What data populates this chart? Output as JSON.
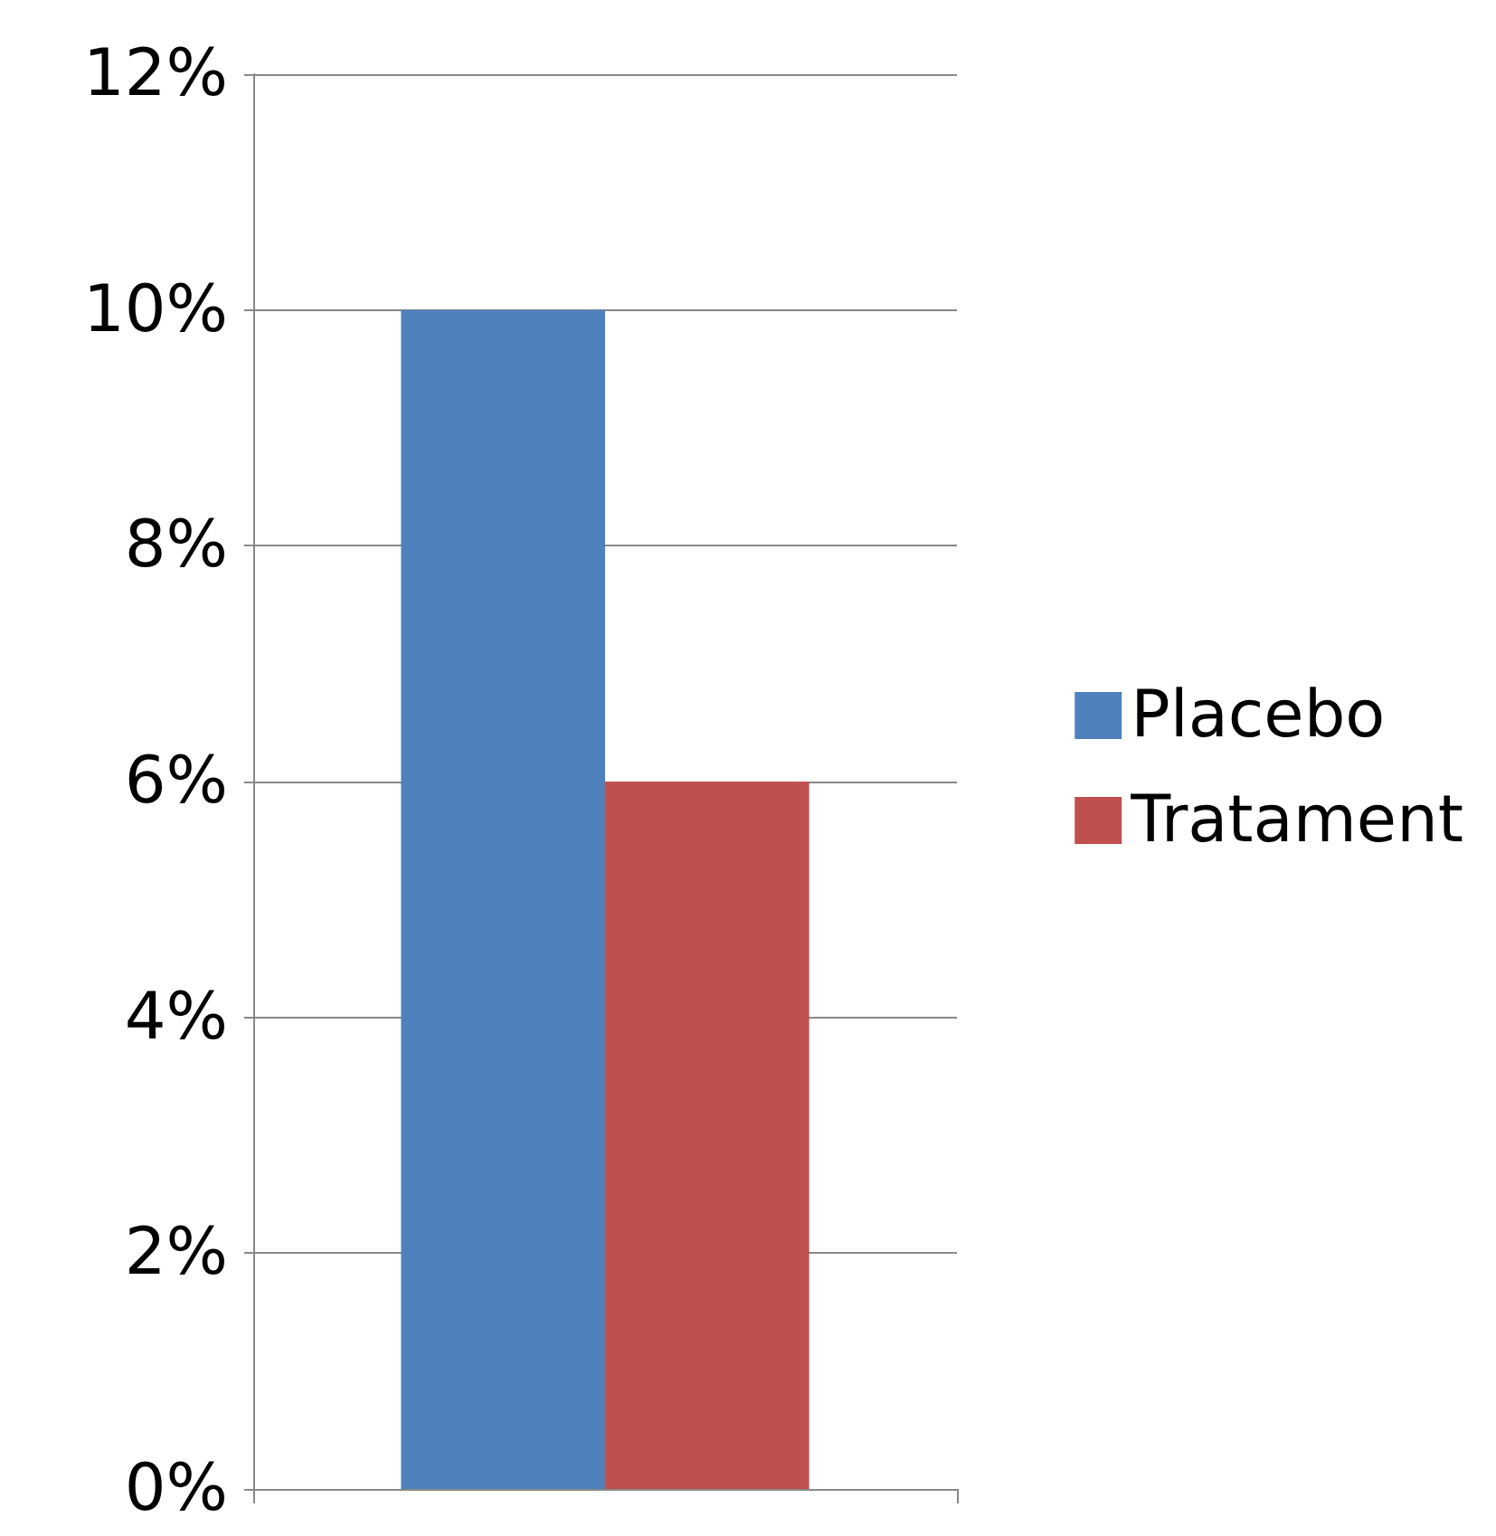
{
  "chart_data": {
    "type": "bar",
    "categories": [
      null
    ],
    "series": [
      {
        "name": "Placebo",
        "color": "#4f81bd",
        "values": [
          10
        ]
      },
      {
        "name": "Tratament",
        "color": "#c0504d",
        "values": [
          6
        ]
      }
    ],
    "ylim": [
      0,
      12
    ],
    "yticks": [
      {
        "value": 0,
        "label": "0%"
      },
      {
        "value": 2,
        "label": "2%"
      },
      {
        "value": 4,
        "label": "4%"
      },
      {
        "value": 6,
        "label": "6%"
      },
      {
        "value": 8,
        "label": "8%"
      },
      {
        "value": 10,
        "label": "10%"
      },
      {
        "value": 12,
        "label": "12%"
      }
    ],
    "grid": "y",
    "legend": "right"
  }
}
